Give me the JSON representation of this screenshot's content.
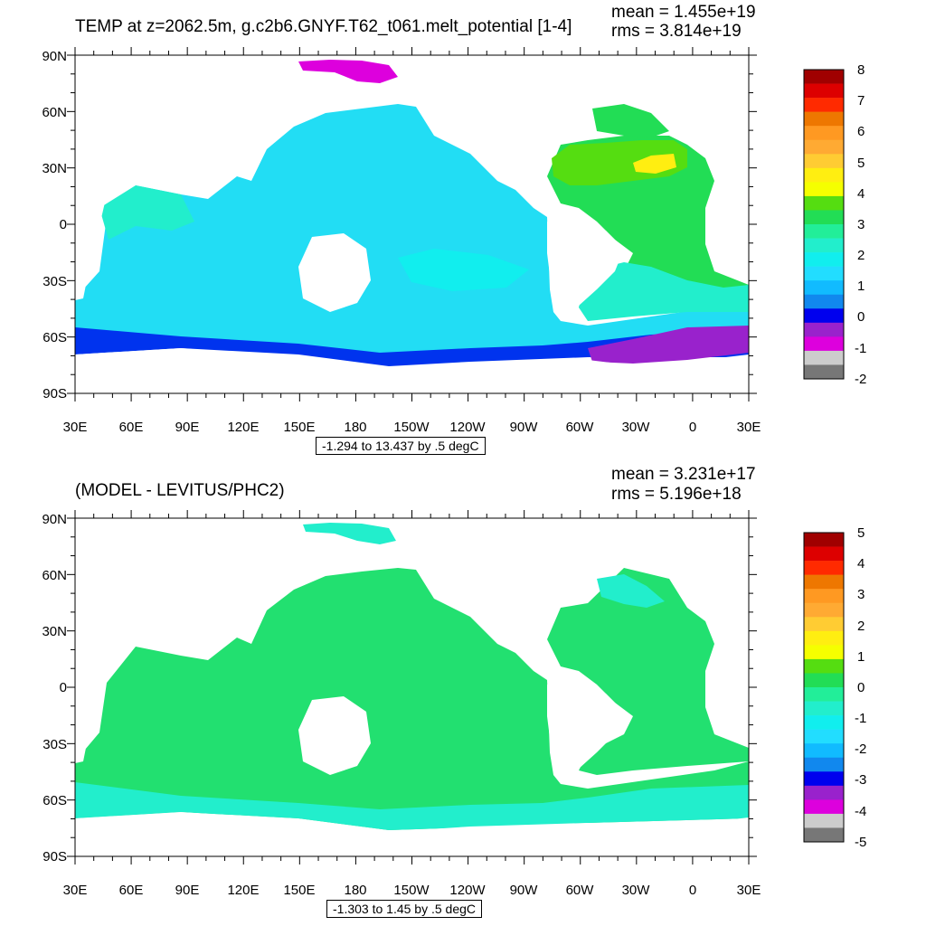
{
  "panels": [
    {
      "title": "TEMP at z=2062.5m, g.c2b6.GNYF.T62_t061.melt_potential [1-4]",
      "mean": "mean = 1.455e+19",
      "rms": "rms = 3.814e+19",
      "range": "-1.294 to 13.437 by .5 degC",
      "colorbar_labels": [
        "8",
        "7",
        "6",
        "5",
        "4",
        "3",
        "2",
        "1",
        "0",
        "-1",
        "-2"
      ]
    },
    {
      "title": "(MODEL - LEVITUS/PHC2)",
      "mean": "mean = 3.231e+17",
      "rms": "rms = 5.196e+18",
      "range": "-1.303 to 1.45 by .5 degC",
      "colorbar_labels": [
        "5",
        "4",
        "3",
        "2",
        "1",
        "0",
        "-1",
        "-2",
        "-3",
        "-4",
        "-5"
      ]
    }
  ],
  "lat_labels": [
    "90N",
    "60N",
    "30N",
    "0",
    "30S",
    "60S",
    "90S"
  ],
  "lon_labels": [
    "30E",
    "60E",
    "90E",
    "120E",
    "150E",
    "180",
    "150W",
    "120W",
    "90W",
    "60W",
    "30W",
    "0",
    "30E"
  ],
  "colors": {
    "top_scale": [
      "#a00000",
      "#dd0000",
      "#ff2a00",
      "#ee7700",
      "#ff9922",
      "#ffaa33",
      "#ffcc33",
      "#ffee11",
      "#f5ff00",
      "#55dd11",
      "#22dd55",
      "#22ee99",
      "#22eecc",
      "#11eeee",
      "#22ddff",
      "#11bbff",
      "#1188ee",
      "#0000ee",
      "#9922cc",
      "#dd00dd",
      "#cccccc",
      "#777777"
    ],
    "ocean_top": "#22ddf4",
    "ocean_bottom": "#22e070",
    "land": "#ffffff"
  }
}
